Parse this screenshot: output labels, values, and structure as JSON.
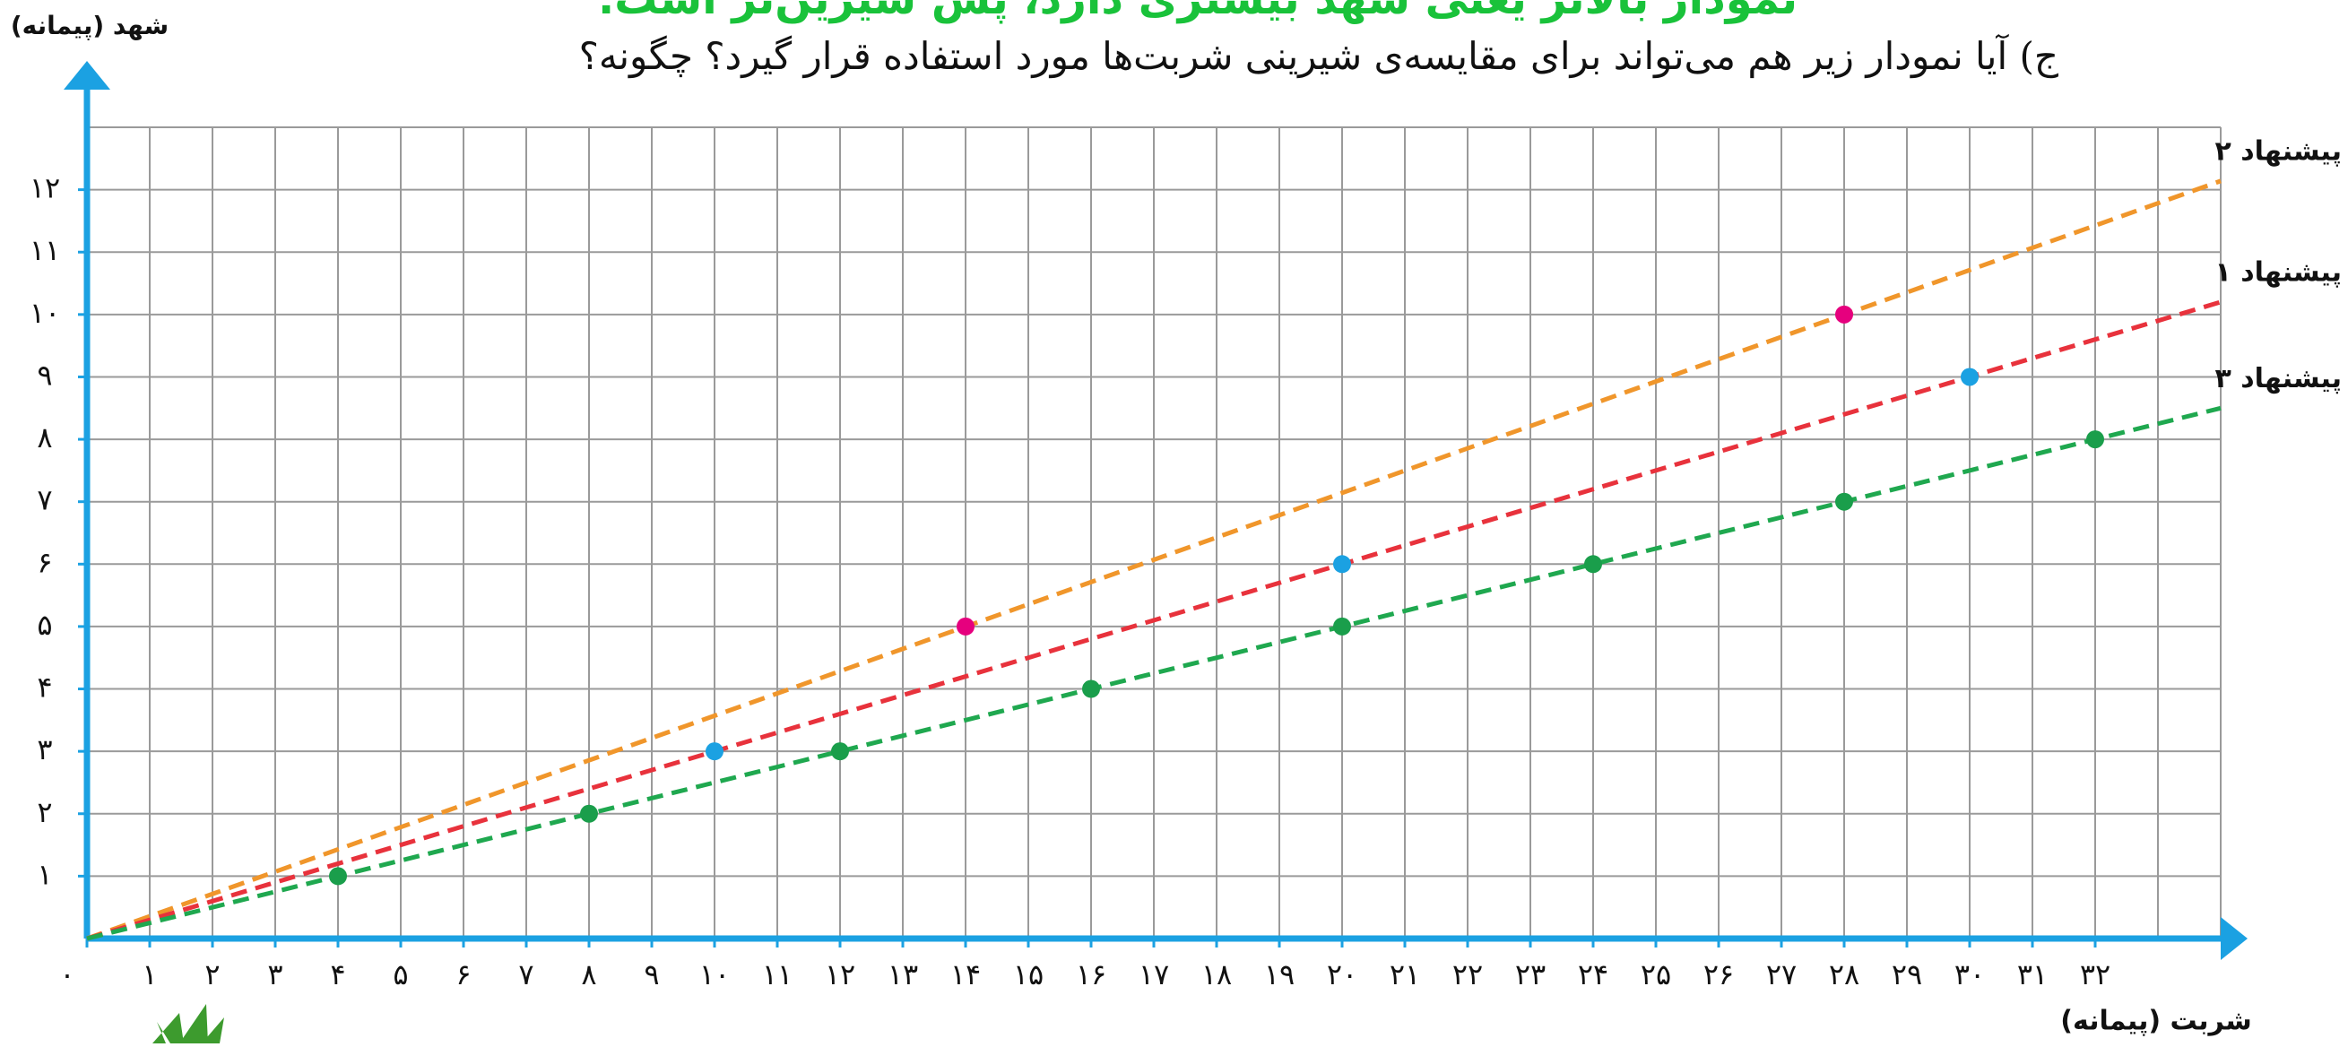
{
  "header": {
    "note": "نمودار بالاتر یعنی شهد بیشتری دارد، پس شیرین‌تر است.",
    "question": "ج) آیا نمودار زیر هم می‌تواند برای مقایسه‌ی شیرینی شربت‌ها مورد استفاده قرار گیرد؟ چگونه؟"
  },
  "chart_data": {
    "type": "line",
    "x_label": "شربت (پیمانه)",
    "y_label": "شهد (پیمانه)",
    "xlim": [
      0,
      34
    ],
    "ylim": [
      0,
      13
    ],
    "grid": true,
    "xgrid": [
      0,
      1,
      2,
      3,
      4,
      5,
      6,
      7,
      8,
      9,
      10,
      11,
      12,
      13,
      14,
      15,
      16,
      17,
      18,
      19,
      20,
      21,
      22,
      23,
      24,
      25,
      26,
      27,
      28,
      29,
      30,
      31,
      32,
      33,
      34
    ],
    "ygrid": [
      0,
      1,
      2,
      3,
      4,
      5,
      6,
      7,
      8,
      9,
      10,
      11,
      12,
      13
    ],
    "xticks": [
      {
        "value": 0,
        "label": "۰"
      },
      {
        "value": 1,
        "label": "۱"
      },
      {
        "value": 2,
        "label": "۲"
      },
      {
        "value": 3,
        "label": "۳"
      },
      {
        "value": 4,
        "label": "۴"
      },
      {
        "value": 5,
        "label": "۵"
      },
      {
        "value": 6,
        "label": "۶"
      },
      {
        "value": 7,
        "label": "۷"
      },
      {
        "value": 8,
        "label": "۸"
      },
      {
        "value": 9,
        "label": "۹"
      },
      {
        "value": 10,
        "label": "۱۰"
      },
      {
        "value": 11,
        "label": "۱۱"
      },
      {
        "value": 12,
        "label": "۱۲"
      },
      {
        "value": 13,
        "label": "۱۳"
      },
      {
        "value": 14,
        "label": "۱۴"
      },
      {
        "value": 15,
        "label": "۱۵"
      },
      {
        "value": 16,
        "label": "۱۶"
      },
      {
        "value": 17,
        "label": "۱۷"
      },
      {
        "value": 18,
        "label": "۱۸"
      },
      {
        "value": 19,
        "label": "۱۹"
      },
      {
        "value": 20,
        "label": "۲۰"
      },
      {
        "value": 21,
        "label": "۲۱"
      },
      {
        "value": 22,
        "label": "۲۲"
      },
      {
        "value": 23,
        "label": "۲۳"
      },
      {
        "value": 24,
        "label": "۲۴"
      },
      {
        "value": 25,
        "label": "۲۵"
      },
      {
        "value": 26,
        "label": "۲۶"
      },
      {
        "value": 27,
        "label": "۲۷"
      },
      {
        "value": 28,
        "label": "۲۸"
      },
      {
        "value": 29,
        "label": "۲۹"
      },
      {
        "value": 30,
        "label": "۳۰"
      },
      {
        "value": 31,
        "label": "۳۱"
      },
      {
        "value": 32,
        "label": "۳۲"
      }
    ],
    "yticks": [
      {
        "value": 1,
        "label": "۱"
      },
      {
        "value": 2,
        "label": "۲"
      },
      {
        "value": 3,
        "label": "۳"
      },
      {
        "value": 4,
        "label": "۴"
      },
      {
        "value": 5,
        "label": "۵"
      },
      {
        "value": 6,
        "label": "۶"
      },
      {
        "value": 7,
        "label": "۷"
      },
      {
        "value": 8,
        "label": "۸"
      },
      {
        "value": 9,
        "label": "۹"
      },
      {
        "value": 10,
        "label": "۱۰"
      },
      {
        "value": 11,
        "label": "۱۱"
      },
      {
        "value": 12,
        "label": "۱۲"
      }
    ],
    "series": [
      {
        "name": "پیشنهاد ۲",
        "color": "#f0962b",
        "point_color": "#e6007e",
        "x": [
          14,
          28
        ],
        "values": [
          5,
          10
        ],
        "line": {
          "x": [
            0,
            34
          ],
          "values": [
            0,
            12.14
          ]
        }
      },
      {
        "name": "پیشنهاد ۱",
        "color": "#e8323c",
        "point_color": "#1ba1e2",
        "x": [
          10,
          20,
          30
        ],
        "values": [
          3,
          6,
          9
        ],
        "line": {
          "x": [
            0,
            34
          ],
          "values": [
            0,
            10.2
          ]
        }
      },
      {
        "name": "پیشنهاد ۳",
        "color": "#1fa84f",
        "point_color": "#1a9e4b",
        "x": [
          4,
          8,
          12,
          16,
          20,
          24,
          28,
          32
        ],
        "values": [
          1,
          2,
          3,
          4,
          5,
          6,
          7,
          8
        ],
        "line": {
          "x": [
            0,
            34
          ],
          "values": [
            0,
            8.5
          ]
        }
      }
    ]
  }
}
